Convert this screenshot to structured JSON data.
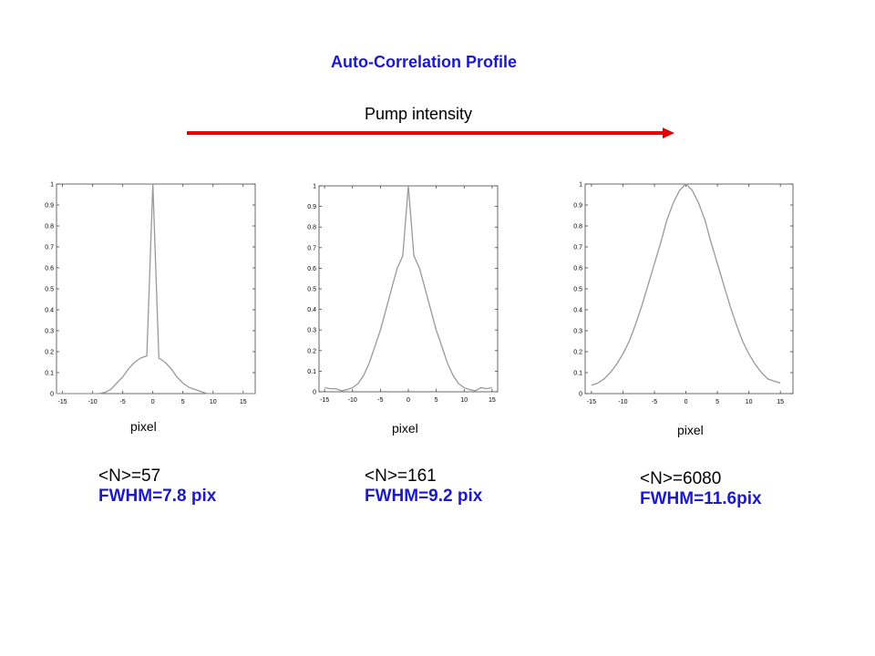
{
  "title": "Auto-Correlation  Profile",
  "pump_label": "Pump intensity",
  "colors": {
    "title": "#1a1acc",
    "arrow": "#e60000",
    "curve": "#999999",
    "axis": "#444444"
  },
  "chart_data": [
    {
      "type": "line",
      "xlabel": "pixel",
      "xlim": [
        -16,
        17
      ],
      "ylim": [
        0,
        1
      ],
      "xticks": [
        -15,
        -10,
        -5,
        0,
        5,
        10,
        15
      ],
      "yticks": [
        0,
        0.1,
        0.2,
        0.3,
        0.4,
        0.5,
        0.6,
        0.7,
        0.8,
        0.9,
        1
      ],
      "series": [
        {
          "x": [
            -16,
            -15,
            -14,
            -13,
            -12,
            -11,
            -10,
            -9,
            -8,
            -7,
            -6,
            -5,
            -4,
            -3,
            -2,
            -1,
            0,
            1,
            2,
            3,
            4,
            5,
            6,
            7,
            8,
            9,
            10,
            11,
            12,
            13,
            14,
            15,
            16,
            17
          ],
          "y": [
            0,
            0,
            0,
            0,
            0,
            0,
            0,
            0,
            0.005,
            0.02,
            0.05,
            0.08,
            0.12,
            0.15,
            0.17,
            0.18,
            1,
            0.17,
            0.15,
            0.12,
            0.08,
            0.05,
            0.03,
            0.02,
            0.01,
            0.0,
            0,
            0,
            0,
            0,
            0,
            0,
            0,
            0
          ]
        }
      ],
      "stats": {
        "n": "<N>=57",
        "fwhm": "FWHM=7.8 pix"
      }
    },
    {
      "type": "line",
      "xlabel": "pixel",
      "xlim": [
        -16,
        16
      ],
      "ylim": [
        0,
        1
      ],
      "xticks": [
        -15,
        -10,
        -5,
        0,
        5,
        10,
        15
      ],
      "yticks": [
        0,
        0.1,
        0.2,
        0.3,
        0.4,
        0.5,
        0.6,
        0.7,
        0.8,
        0.9,
        1
      ],
      "series": [
        {
          "x": [
            -15,
            -14,
            -13,
            -12,
            -11,
            -10,
            -9,
            -8,
            -7,
            -6,
            -5,
            -4,
            -3,
            -2,
            -1,
            0,
            1,
            2,
            3,
            4,
            5,
            6,
            7,
            8,
            9,
            10,
            11,
            12,
            13,
            14,
            15
          ],
          "y": [
            0.02,
            0.015,
            0.015,
            0.005,
            0.01,
            0.02,
            0.04,
            0.08,
            0.14,
            0.22,
            0.3,
            0.4,
            0.5,
            0.6,
            0.66,
            1,
            0.66,
            0.6,
            0.5,
            0.4,
            0.3,
            0.22,
            0.14,
            0.08,
            0.04,
            0.02,
            0.01,
            0.005,
            0.02,
            0.015,
            0.02
          ]
        }
      ],
      "stats": {
        "n": "<N>=161",
        "fwhm": "FWHM=9.2 pix"
      }
    },
    {
      "type": "line",
      "xlabel": "pixel",
      "xlim": [
        -16,
        17
      ],
      "ylim": [
        0,
        1
      ],
      "xticks": [
        -15,
        -10,
        -5,
        0,
        5,
        10,
        15
      ],
      "yticks": [
        0,
        0.1,
        0.2,
        0.3,
        0.4,
        0.5,
        0.6,
        0.7,
        0.8,
        0.9,
        1
      ],
      "series": [
        {
          "x": [
            -15,
            -14,
            -13,
            -12,
            -11,
            -10,
            -9,
            -8,
            -7,
            -6,
            -5,
            -4,
            -3,
            -2,
            -1,
            0,
            1,
            2,
            3,
            4,
            5,
            6,
            7,
            8,
            9,
            10,
            11,
            12,
            13,
            14,
            15
          ],
          "y": [
            0.04,
            0.05,
            0.07,
            0.1,
            0.14,
            0.19,
            0.25,
            0.33,
            0.42,
            0.52,
            0.62,
            0.72,
            0.83,
            0.91,
            0.97,
            1,
            0.97,
            0.91,
            0.83,
            0.72,
            0.62,
            0.52,
            0.42,
            0.33,
            0.25,
            0.19,
            0.14,
            0.1,
            0.07,
            0.06,
            0.05
          ]
        }
      ],
      "stats": {
        "n": "<N>=6080",
        "fwhm": "FWHM=11.6pix"
      }
    }
  ]
}
